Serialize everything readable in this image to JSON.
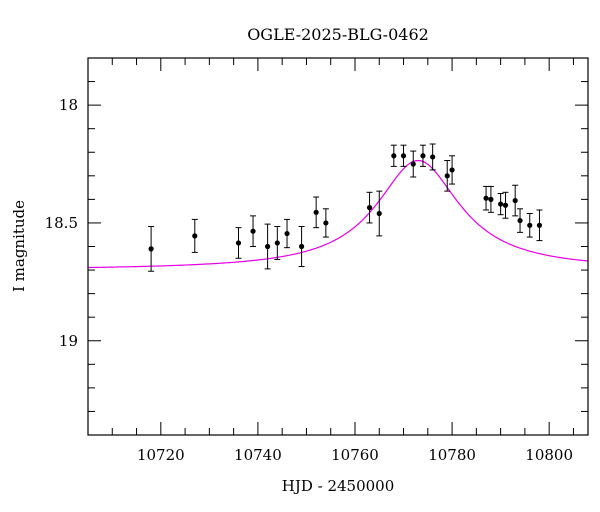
{
  "chart_data": {
    "type": "scatter",
    "title": "OGLE-2025-BLG-0462",
    "xlabel": "HJD - 2450000",
    "ylabel": "I magnitude",
    "xlim": [
      10705,
      10808
    ],
    "ylim": [
      19.4,
      17.8
    ],
    "y_inverted": true,
    "x_major_ticks": [
      10720,
      10740,
      10760,
      10780,
      10800
    ],
    "x_minor_step": 5,
    "y_major_ticks": [
      18,
      18.5,
      19
    ],
    "y_tick_labels": [
      "18",
      "18.5",
      "19"
    ],
    "y_minor_step": 0.1,
    "grid": false,
    "colors": {
      "points": "#000000",
      "model": "#e600e6"
    },
    "series": [
      {
        "kind": "points_with_errorbars",
        "x": [
          10718,
          10727,
          10736,
          10739,
          10742,
          10744,
          10746,
          10749,
          10752,
          10754,
          10763,
          10765,
          10768,
          10770,
          10772,
          10774,
          10776,
          10779,
          10780,
          10787,
          10788,
          10790,
          10791,
          10793,
          10794,
          10796,
          10798
        ],
        "y": [
          18.61,
          18.555,
          18.585,
          18.535,
          18.6,
          18.585,
          18.545,
          18.6,
          18.455,
          18.5,
          18.435,
          18.46,
          18.215,
          18.215,
          18.25,
          18.215,
          18.22,
          18.3,
          18.275,
          18.395,
          18.4,
          18.42,
          18.425,
          18.405,
          18.49,
          18.51,
          18.51
        ],
        "yerr": [
          0.095,
          0.07,
          0.065,
          0.065,
          0.095,
          0.07,
          0.06,
          0.085,
          0.065,
          0.06,
          0.065,
          0.095,
          0.045,
          0.045,
          0.055,
          0.045,
          0.055,
          0.065,
          0.06,
          0.05,
          0.055,
          0.045,
          0.055,
          0.065,
          0.05,
          0.05,
          0.065
        ]
      },
      {
        "kind": "model_curve",
        "t0": 10773,
        "baseline": 18.7,
        "peak": 18.235,
        "width": 10.5
      }
    ]
  }
}
